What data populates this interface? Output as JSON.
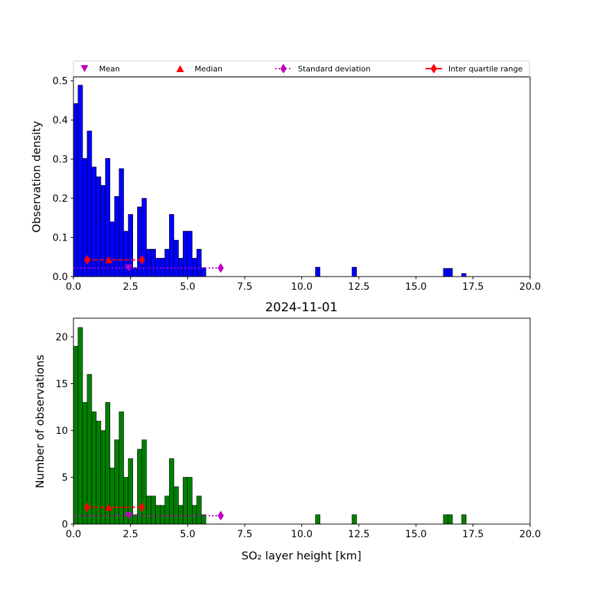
{
  "legend": {
    "mean_label": "Mean",
    "median_label": "Median",
    "std_label": "Standard deviation",
    "iqr_label": "Inter quartile range",
    "placement": "top, above upper panel"
  },
  "colors": {
    "density_bars": "#0000ff",
    "count_bars": "#008000",
    "mean_marker": "#bf00bf",
    "median_marker": "#ff0000",
    "std_line": "#bf00bf",
    "iqr_line": "#ff0000"
  },
  "chart_data": [
    {
      "type": "bar",
      "subtype": "histogram",
      "title": "",
      "xlabel": "",
      "ylabel": "Observation density",
      "xlim": [
        0,
        20
      ],
      "ylim": [
        0,
        0.51
      ],
      "xticks": [
        "0.0",
        "2.5",
        "5.0",
        "7.5",
        "10.0",
        "12.5",
        "15.0",
        "17.5",
        "20.0"
      ],
      "yticks": [
        "0.0",
        "0.1",
        "0.2",
        "0.3",
        "0.4",
        "0.5"
      ],
      "bin_width": 0.2,
      "bin_starts": [
        0,
        0.2,
        0.4,
        0.6,
        0.8,
        1.0,
        1.2,
        1.4,
        1.6,
        1.8,
        2.0,
        2.2,
        2.4,
        2.6,
        2.8,
        3.0,
        3.2,
        3.4,
        3.6,
        3.8,
        4.0,
        4.2,
        4.4,
        4.6,
        4.8,
        5.0,
        5.2,
        5.4,
        5.6,
        10.6,
        12.2,
        16.2,
        16.4,
        17.0
      ],
      "values": [
        0.442,
        0.489,
        0.302,
        0.372,
        0.28,
        0.255,
        0.233,
        0.302,
        0.14,
        0.205,
        0.276,
        0.116,
        0.159,
        0.023,
        0.178,
        0.2,
        0.07,
        0.07,
        0.047,
        0.047,
        0.07,
        0.159,
        0.093,
        0.047,
        0.116,
        0.116,
        0.047,
        0.07,
        0.023,
        0.024,
        0.024,
        0.021,
        0.021,
        0.008
      ],
      "stats": {
        "mean": 2.42,
        "median": 1.55,
        "std_line": [
          0.0,
          6.45
        ],
        "iqr": [
          0.6,
          3.0
        ],
        "marker_y": 0.022,
        "iqr_y": 0.043
      },
      "grid": false
    },
    {
      "type": "bar",
      "subtype": "histogram",
      "title": "2024-11-01",
      "xlabel": "SO₂ layer height [km]",
      "ylabel": "Number of observations",
      "xlim": [
        0,
        20
      ],
      "ylim": [
        0,
        22
      ],
      "xticks": [
        "0.0",
        "2.5",
        "5.0",
        "7.5",
        "10.0",
        "12.5",
        "15.0",
        "17.5",
        "20.0"
      ],
      "yticks": [
        "0",
        "5",
        "10",
        "15",
        "20"
      ],
      "bin_width": 0.2,
      "bin_starts": [
        0,
        0.2,
        0.4,
        0.6,
        0.8,
        1.0,
        1.2,
        1.4,
        1.6,
        1.8,
        2.0,
        2.2,
        2.4,
        2.6,
        2.8,
        3.0,
        3.2,
        3.4,
        3.6,
        3.8,
        4.0,
        4.2,
        4.4,
        4.6,
        4.8,
        5.0,
        5.2,
        5.4,
        5.6,
        10.6,
        12.2,
        16.2,
        16.4,
        17.0
      ],
      "values": [
        19,
        21,
        13,
        16,
        12,
        11,
        10,
        13,
        6,
        9,
        12,
        5,
        7,
        1,
        8,
        9,
        3,
        3,
        2,
        2,
        3,
        7,
        4,
        2,
        5,
        5,
        2,
        3,
        1,
        1,
        1,
        1,
        1,
        1
      ],
      "stats": {
        "mean": 2.42,
        "median": 1.55,
        "std_line": [
          0.0,
          6.45
        ],
        "iqr": [
          0.6,
          3.0
        ],
        "marker_y": 0.9,
        "iqr_y": 1.8
      },
      "grid": false
    }
  ]
}
